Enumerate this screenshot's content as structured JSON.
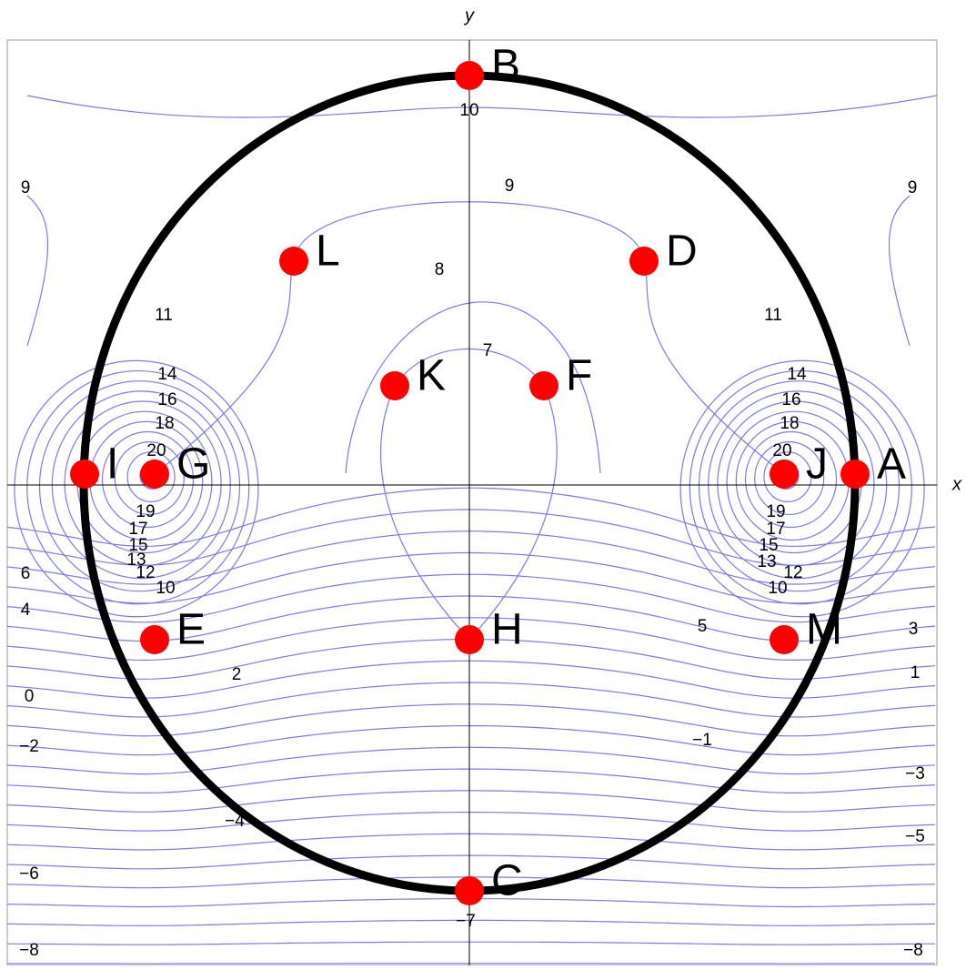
{
  "axes": {
    "x": "x",
    "y": "y"
  },
  "points": [
    "A",
    "B",
    "C",
    "D",
    "E",
    "F",
    "G",
    "H",
    "I",
    "J",
    "K",
    "L",
    "M"
  ],
  "contour_labels": [
    "10",
    "9",
    "9",
    "9",
    "8",
    "11",
    "11",
    "7",
    "14",
    "16",
    "18",
    "20",
    "14",
    "16",
    "18",
    "20",
    "19",
    "17",
    "15",
    "13",
    "12",
    "10",
    "19",
    "17",
    "15",
    "13",
    "12",
    "10",
    "6",
    "4",
    "5",
    "3",
    "2",
    "1",
    "0",
    "−1",
    "−2",
    "−3",
    "−4",
    "−5",
    "−6",
    "−7",
    "−8",
    "−8"
  ]
}
